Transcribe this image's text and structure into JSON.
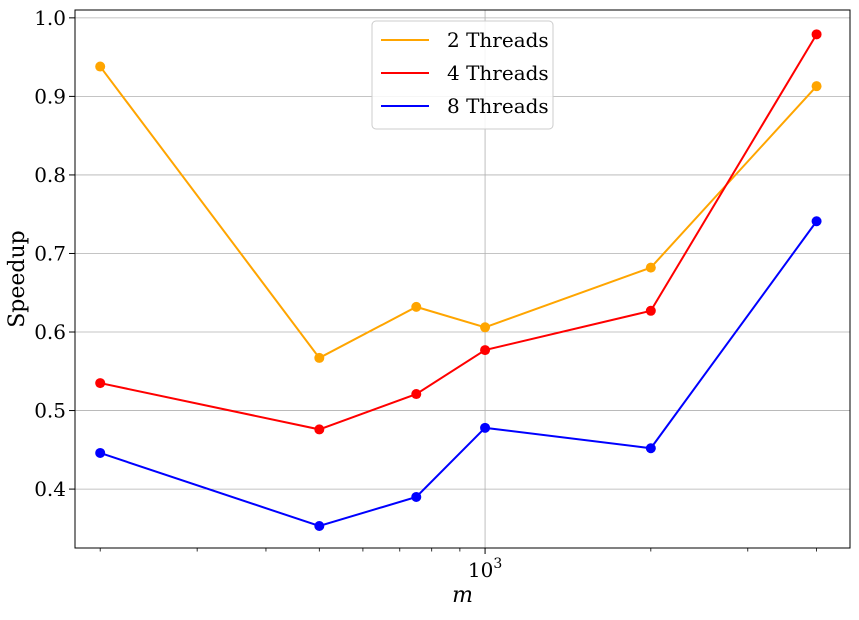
{
  "chart_data": {
    "type": "line",
    "xlabel": "m",
    "ylabel": "Speedup",
    "x_scale": "log",
    "x": [
      200,
      500,
      750,
      1000,
      2000,
      4000
    ],
    "xlim": [
      180,
      4600
    ],
    "ylim": [
      0.325,
      1.01
    ],
    "y_ticks": [
      0.4,
      0.5,
      0.6,
      0.7,
      0.8,
      0.9,
      1.0
    ],
    "y_tick_labels": [
      "0.4",
      "0.5",
      "0.6",
      "0.7",
      "0.8",
      "0.9",
      "1.0"
    ],
    "x_major_tick": 1000,
    "x_major_tick_label": {
      "base": "10",
      "exp": "3"
    },
    "x_minor_ticks": [
      200,
      300,
      400,
      500,
      600,
      700,
      800,
      900,
      2000,
      3000,
      4000
    ],
    "grid": true,
    "legend_position": "top-center",
    "series": [
      {
        "name": "2 Threads",
        "color": "#FFA500",
        "values": [
          0.938,
          0.567,
          0.632,
          0.606,
          0.682,
          0.913
        ]
      },
      {
        "name": "4 Threads",
        "color": "#FF0000",
        "values": [
          0.535,
          0.476,
          0.521,
          0.577,
          0.627,
          0.979
        ]
      },
      {
        "name": "8 Threads",
        "color": "#0000FF",
        "values": [
          0.446,
          0.353,
          0.39,
          0.478,
          0.452,
          0.741
        ]
      }
    ]
  }
}
